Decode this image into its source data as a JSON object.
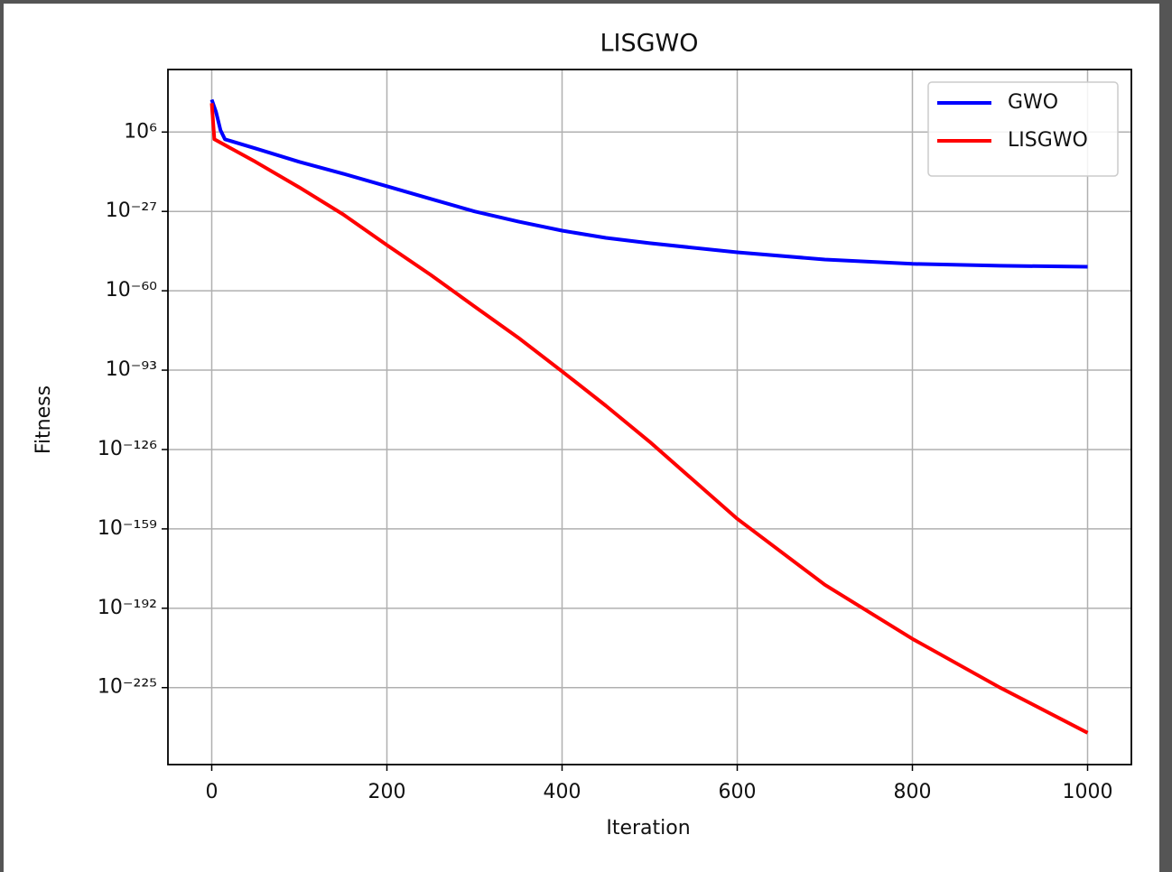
{
  "chart_data": {
    "type": "line",
    "title": "LISGWO",
    "x_label": "Iteration",
    "y_label": "Fitness",
    "log_y": true,
    "grid": true,
    "legend": "upper right",
    "xlim": [
      -50,
      1050
    ],
    "xticks": [
      0,
      200,
      400,
      600,
      800,
      1000
    ],
    "ylim": [
      1e-257,
      1e+32
    ],
    "yticks": [
      {
        "value": 1000000.0,
        "label": "10⁶"
      },
      {
        "value": 1e-27,
        "label": "10⁻²⁷"
      },
      {
        "value": 1e-60,
        "label": "10⁻⁶⁰"
      },
      {
        "value": 1e-93,
        "label": "10⁻⁹³"
      },
      {
        "value": 1e-126,
        "label": "10⁻¹²⁶"
      },
      {
        "value": 1e-159,
        "label": "10⁻¹⁵⁹"
      },
      {
        "value": 1e-192,
        "label": "10⁻¹⁹²"
      },
      {
        "value": 1e-225,
        "label": "10⁻²²⁵"
      }
    ],
    "series": [
      {
        "name": "GWO",
        "color": "#0000ff",
        "x": [
          0,
          5,
          10,
          15,
          50,
          100,
          150,
          200,
          250,
          300,
          350,
          400,
          450,
          500,
          600,
          700,
          800,
          900,
          1000
        ],
        "values": [
          3e+19,
          200000000000000.0,
          6000000.0,
          1000.0,
          0.16,
          4e-07,
          5e-12,
          3e-17,
          1.6e-22,
          1e-27,
          6e-32,
          1e-35,
          1e-38,
          6e-41,
          1e-44,
          1e-47,
          1.6e-49,
          2.5e-50,
          1e-50
        ]
      },
      {
        "name": "LISGWO",
        "color": "#ff0000",
        "x": [
          0,
          3,
          50,
          100,
          150,
          200,
          250,
          300,
          350,
          400,
          450,
          500,
          600,
          700,
          800,
          900,
          1000
        ],
        "values": [
          1e+18,
          1000.0,
          4e-07,
          1e-17,
          6e-29,
          1e-41,
          4e-54,
          3e-67,
          3e-80,
          3e-94,
          1.6e-108,
          1.6e-123,
          1.6e-155,
          6e-183,
          2e-205,
          1e-225,
          1.6e-244
        ]
      }
    ]
  }
}
